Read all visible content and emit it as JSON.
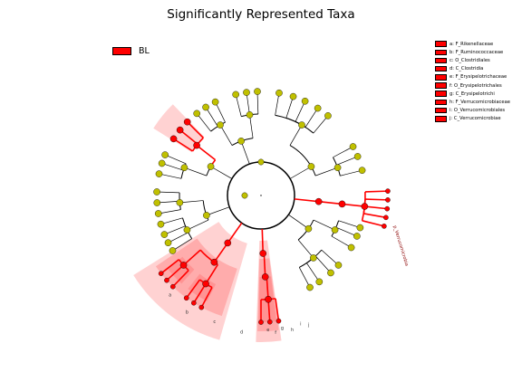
{
  "title": "Significantly Represented Taxa",
  "colors": {
    "enriched": "#ff0000",
    "neutral_node": "#c0c000",
    "shade": "#ff7f7f"
  },
  "main_legend": {
    "label": "BL",
    "color": "#ff0000"
  },
  "key": [
    {
      "letter": "a",
      "text": "a: F_Rikenellaceae"
    },
    {
      "letter": "b",
      "text": "b: F_Ruminococcaceae"
    },
    {
      "letter": "c",
      "text": "c: O_Clostridiales"
    },
    {
      "letter": "d",
      "text": "d: C_Clostridia"
    },
    {
      "letter": "e",
      "text": "e: F_Erysipelotrichaceae"
    },
    {
      "letter": "f",
      "text": "f: O_Erysipelotrichales"
    },
    {
      "letter": "g",
      "text": "g: C_Erysipelotrichi"
    },
    {
      "letter": "h",
      "text": "h: F_Verrucomicrobiaceae"
    },
    {
      "letter": "i",
      "text": "i: O_Verrucomicrobiales"
    },
    {
      "letter": "j",
      "text": "j: C_Verrucomicrobiae"
    }
  ],
  "phylum_label": "p_Verrucomicrobia",
  "clade_labels": [
    "a",
    "b",
    "c",
    "d",
    "e",
    "f",
    "g",
    "h",
    "i",
    "j"
  ]
}
